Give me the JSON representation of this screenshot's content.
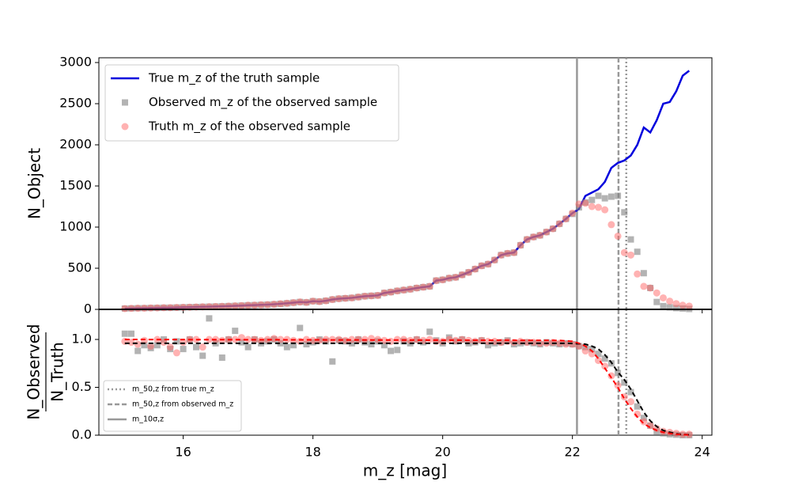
{
  "chart_data": [
    {
      "type": "line",
      "ylabel": "N_Object",
      "ylim": [
        0,
        3058
      ],
      "yticks": [
        0,
        500,
        1000,
        1500,
        2000,
        2500,
        3000
      ],
      "legend": "upper left",
      "x": [
        15.1,
        15.2,
        15.3,
        15.4,
        15.5,
        15.6,
        15.7,
        15.8,
        15.9,
        16.0,
        16.1,
        16.2,
        16.3,
        16.4,
        16.5,
        16.6,
        16.7,
        16.8,
        16.9,
        17.0,
        17.1,
        17.2,
        17.3,
        17.4,
        17.5,
        17.6,
        17.7,
        17.8,
        17.9,
        18.0,
        18.1,
        18.2,
        18.3,
        18.4,
        18.5,
        18.6,
        18.7,
        18.8,
        18.9,
        19.0,
        19.1,
        19.2,
        19.3,
        19.4,
        19.5,
        19.6,
        19.7,
        19.8,
        19.9,
        20.0,
        20.1,
        20.2,
        20.3,
        20.4,
        20.5,
        20.6,
        20.7,
        20.8,
        20.9,
        21.0,
        21.1,
        21.2,
        21.3,
        21.4,
        21.5,
        21.6,
        21.7,
        21.8,
        21.9,
        22.0,
        22.1,
        22.2,
        22.3,
        22.4,
        22.5,
        22.6,
        22.7,
        22.8,
        22.9,
        23.0,
        23.1,
        23.2,
        23.3,
        23.4,
        23.5,
        23.6,
        23.7,
        23.8
      ],
      "series": [
        {
          "name": "True m_z of the truth sample",
          "color": "#0000dd",
          "marker": "line",
          "values": [
            10,
            12,
            14,
            15,
            17,
            18,
            20,
            21,
            23,
            25,
            27,
            29,
            31,
            33,
            35,
            37,
            40,
            43,
            46,
            50,
            52,
            55,
            58,
            62,
            68,
            74,
            82,
            90,
            85,
            100,
            95,
            105,
            120,
            130,
            135,
            140,
            150,
            160,
            165,
            170,
            200,
            210,
            225,
            235,
            245,
            260,
            270,
            280,
            350,
            360,
            380,
            390,
            420,
            450,
            490,
            530,
            550,
            600,
            660,
            680,
            690,
            780,
            850,
            880,
            900,
            940,
            980,
            1040,
            1100,
            1170,
            1220,
            1380,
            1420,
            1460,
            1550,
            1720,
            1780,
            1810,
            1870,
            2000,
            2210,
            2150,
            2300,
            2500,
            2520,
            2650,
            2840,
            2900
          ]
        },
        {
          "name": "Observed m_z of the observed sample",
          "color": "#808080",
          "marker": "square",
          "values": [
            10,
            12,
            14,
            15,
            17,
            18,
            20,
            21,
            23,
            25,
            27,
            29,
            31,
            33,
            35,
            37,
            40,
            43,
            46,
            50,
            52,
            55,
            58,
            62,
            68,
            74,
            82,
            90,
            85,
            100,
            95,
            105,
            120,
            130,
            135,
            140,
            150,
            160,
            165,
            170,
            200,
            210,
            225,
            235,
            245,
            260,
            270,
            280,
            350,
            360,
            380,
            390,
            420,
            450,
            490,
            530,
            550,
            600,
            660,
            680,
            690,
            780,
            850,
            880,
            900,
            940,
            980,
            1040,
            1100,
            1160,
            1240,
            1300,
            1330,
            1380,
            1350,
            1370,
            1380,
            1180,
            850,
            700,
            440,
            260,
            90,
            40,
            25,
            15,
            10,
            5
          ]
        },
        {
          "name": "Truth m_z of the observed sample",
          "color": "#ff6666",
          "marker": "circle",
          "values": [
            10,
            12,
            14,
            15,
            17,
            18,
            20,
            21,
            23,
            25,
            27,
            29,
            31,
            33,
            35,
            37,
            40,
            43,
            46,
            50,
            52,
            55,
            58,
            62,
            68,
            74,
            82,
            90,
            85,
            100,
            95,
            105,
            120,
            130,
            135,
            140,
            150,
            160,
            165,
            170,
            200,
            210,
            225,
            235,
            245,
            260,
            270,
            280,
            350,
            360,
            380,
            390,
            420,
            450,
            490,
            530,
            550,
            600,
            660,
            680,
            690,
            780,
            850,
            880,
            900,
            940,
            980,
            1040,
            1100,
            1170,
            1280,
            1290,
            1250,
            1240,
            1210,
            1030,
            890,
            690,
            660,
            430,
            280,
            260,
            200,
            140,
            100,
            70,
            50,
            40
          ]
        }
      ]
    },
    {
      "type": "line",
      "ylabel": {
        "numerator": "N_Observed",
        "denominator": "N_Truth"
      },
      "xlabel": "m_z [mag]",
      "xlim": [
        14.7,
        24.15
      ],
      "xticks": [
        16,
        18,
        20,
        22,
        24
      ],
      "ylim": [
        0,
        1.314
      ],
      "yticks": [
        {
          "value": 0,
          "label": "0.0"
        },
        {
          "value": 0.5,
          "label": "0.5"
        },
        {
          "value": 1,
          "label": "1.0"
        }
      ],
      "legend": "lower left",
      "vlines": [
        {
          "name": "m_50,z from true m_z",
          "x": 22.83,
          "style": "dotted",
          "color": "#999999"
        },
        {
          "name": "m_50,z from observed m_z",
          "x": 22.71,
          "style": "dashed",
          "color": "#999999"
        },
        {
          "name": "m_10σ,z",
          "x": 22.07,
          "style": "solid",
          "color": "#999999"
        }
      ],
      "x": [
        15.1,
        15.2,
        15.3,
        15.4,
        15.5,
        15.6,
        15.7,
        15.8,
        15.9,
        16.0,
        16.1,
        16.2,
        16.3,
        16.4,
        16.5,
        16.6,
        16.7,
        16.8,
        16.9,
        17.0,
        17.1,
        17.2,
        17.3,
        17.4,
        17.5,
        17.6,
        17.7,
        17.8,
        17.9,
        18.0,
        18.1,
        18.2,
        18.3,
        18.4,
        18.5,
        18.6,
        18.7,
        18.8,
        18.9,
        19.0,
        19.1,
        19.2,
        19.3,
        19.4,
        19.5,
        19.6,
        19.7,
        19.8,
        19.9,
        20.0,
        20.1,
        20.2,
        20.3,
        20.4,
        20.5,
        20.6,
        20.7,
        20.8,
        20.9,
        21.0,
        21.1,
        21.2,
        21.3,
        21.4,
        21.5,
        21.6,
        21.7,
        21.8,
        21.9,
        22.0,
        22.1,
        22.2,
        22.3,
        22.4,
        22.5,
        22.6,
        22.7,
        22.8,
        22.9,
        23.0,
        23.1,
        23.2,
        23.3,
        23.4,
        23.5,
        23.6,
        23.7,
        23.8
      ],
      "series": [
        {
          "color": "#808080",
          "marker": "square",
          "values": [
            1.06,
            1.06,
            0.88,
            0.94,
            0.91,
            0.94,
            1.0,
            0.9,
            0.98,
            0.9,
            1.0,
            0.92,
            0.83,
            1.22,
            0.96,
            0.81,
            1.0,
            1.09,
            0.97,
            0.92,
            1.0,
            0.96,
            0.98,
            1.0,
            0.96,
            0.92,
            0.94,
            1.12,
            0.95,
            0.97,
            1.0,
            0.98,
            0.77,
            0.99,
            0.98,
            0.96,
            1.0,
            0.97,
            0.95,
            0.98,
            0.94,
            0.88,
            0.89,
            0.98,
            0.96,
            1.0,
            0.97,
            1.08,
            0.99,
            0.96,
            1.02,
            0.98,
            1.0,
            0.96,
            0.97,
            0.99,
            0.94,
            0.96,
            0.97,
            0.99,
            0.95,
            0.96,
            0.97,
            0.96,
            0.95,
            0.97,
            0.96,
            0.95,
            0.96,
            0.95,
            0.93,
            0.92,
            0.9,
            0.85,
            0.8,
            0.75,
            0.65,
            0.55,
            0.45,
            0.3,
            0.18,
            0.1,
            0.04,
            0.02,
            0.01,
            0.005,
            0,
            0
          ]
        },
        {
          "color": "#ff6666",
          "marker": "circle",
          "values": [
            0.98,
            0.97,
            0.95,
            0.99,
            0.93,
            1.0,
            0.97,
            0.92,
            0.86,
            0.97,
            1.0,
            1.0,
            0.92,
            1.0,
            1.0,
            0.99,
            1.0,
            1.0,
            1.02,
            1.0,
            1.0,
            0.99,
            1.0,
            1.01,
            1.0,
            1.0,
            0.99,
            0.98,
            1.0,
            0.99,
            0.99,
            1.0,
            1.0,
            1.0,
            0.99,
            1.0,
            1.0,
            1.0,
            1.01,
            1.0,
            0.99,
            0.98,
            1.0,
            1.0,
            0.99,
            1.0,
            0.99,
            1.0,
            0.98,
            0.98,
            1.0,
            0.99,
            1.0,
            0.99,
            0.98,
            0.99,
            0.98,
            0.98,
            0.97,
            0.98,
            0.97,
            0.98,
            0.97,
            0.97,
            0.96,
            0.96,
            0.97,
            0.96,
            0.95,
            0.95,
            0.93,
            0.88,
            0.85,
            0.78,
            0.72,
            0.62,
            0.52,
            0.4,
            0.35,
            0.22,
            0.14,
            0.1,
            0.07,
            0.04,
            0.03,
            0.02,
            0.01,
            0.01
          ]
        },
        {
          "color": "#000000",
          "marker": "dashed",
          "x": [
            15.1,
            21.8,
            21.9,
            22.0,
            22.1,
            22.2,
            22.3,
            22.4,
            22.5,
            22.6,
            22.7,
            22.8,
            22.9,
            23.0,
            23.1,
            23.2,
            23.3,
            23.4,
            23.5,
            23.6,
            23.7,
            23.8
          ],
          "values": [
            0.96,
            0.96,
            0.96,
            0.958,
            0.955,
            0.95,
            0.93,
            0.9,
            0.84,
            0.76,
            0.66,
            0.58,
            0.48,
            0.36,
            0.24,
            0.15,
            0.09,
            0.05,
            0.03,
            0.015,
            0.008,
            0.004
          ]
        },
        {
          "color": "#ff0000",
          "marker": "dashed",
          "x": [
            15.1,
            21.8,
            21.9,
            22.0,
            22.1,
            22.2,
            22.3,
            22.4,
            22.5,
            22.6,
            22.7,
            22.8,
            22.9,
            23.0,
            23.1,
            23.2,
            23.3,
            23.4,
            23.5,
            23.6,
            23.7,
            23.8
          ],
          "values": [
            1.0,
            0.99,
            0.985,
            0.98,
            0.96,
            0.93,
            0.88,
            0.8,
            0.7,
            0.6,
            0.5,
            0.38,
            0.28,
            0.19,
            0.12,
            0.08,
            0.05,
            0.03,
            0.02,
            0.01,
            0.006,
            0.003
          ]
        }
      ]
    }
  ]
}
